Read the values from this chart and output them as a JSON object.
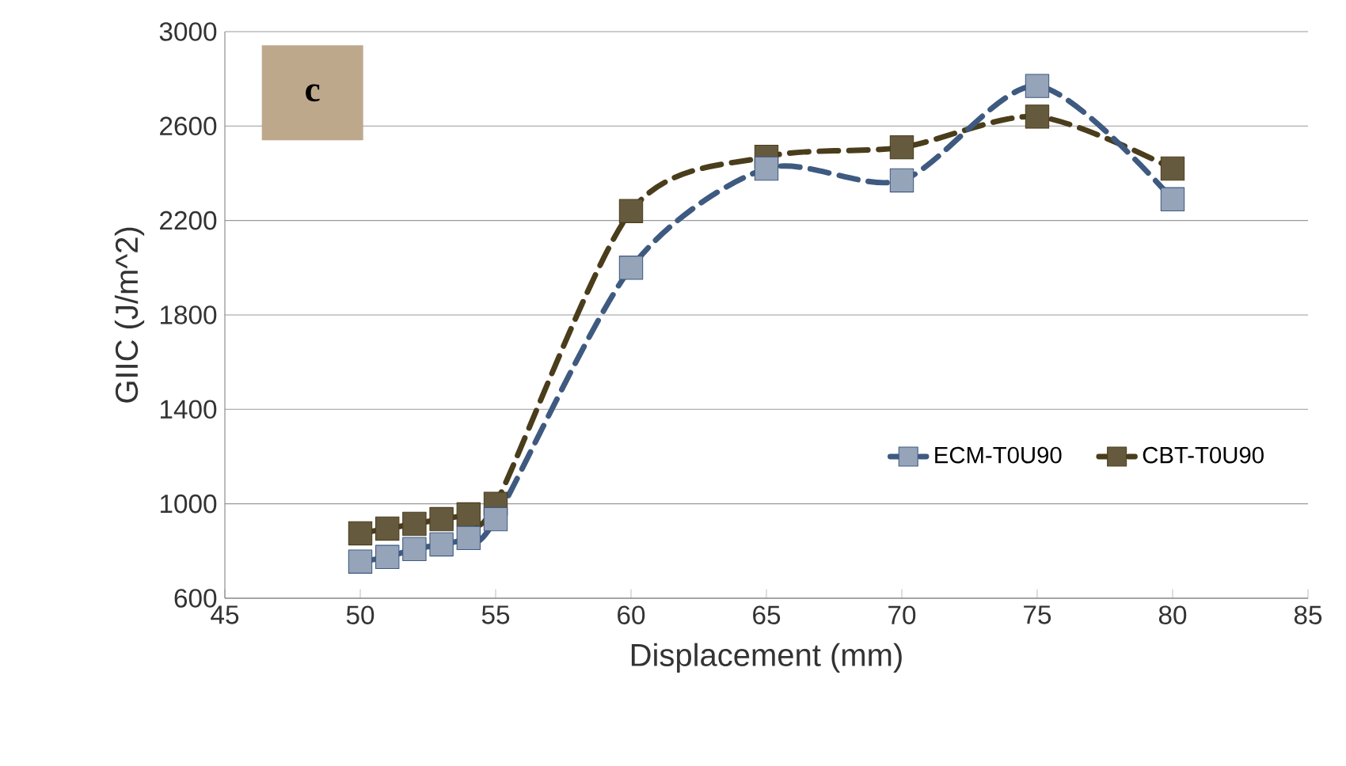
{
  "chart_data": {
    "type": "line",
    "xlabel": "Displacement (mm)",
    "ylabel": "GIIC (J/m^2)",
    "annotations": [
      "c"
    ],
    "xlim": [
      45,
      85
    ],
    "xticks": [
      45,
      50,
      55,
      60,
      65,
      70,
      75,
      80,
      85
    ],
    "ylim": [
      600,
      3000
    ],
    "yticks": [
      600,
      1000,
      1400,
      1800,
      2200,
      2600,
      3000
    ],
    "grid": "y",
    "legend": "right",
    "marker": "square",
    "line_style": "dashed",
    "series": [
      {
        "name": "ECM-T0U90",
        "color": "#3f5a80",
        "x": [
          50,
          51,
          52,
          53,
          54,
          55,
          60,
          65,
          70,
          75,
          80
        ],
        "values": [
          755,
          775,
          808,
          828,
          855,
          935,
          2000,
          2420,
          2370,
          2770,
          2290
        ]
      },
      {
        "name": "CBT-T0U90",
        "color": "#4a3d1c",
        "x": [
          50,
          51,
          52,
          53,
          54,
          55,
          60,
          65,
          70,
          75,
          80
        ],
        "values": [
          875,
          895,
          915,
          935,
          955,
          1000,
          2240,
          2470,
          2510,
          2640,
          2420
        ]
      }
    ]
  }
}
